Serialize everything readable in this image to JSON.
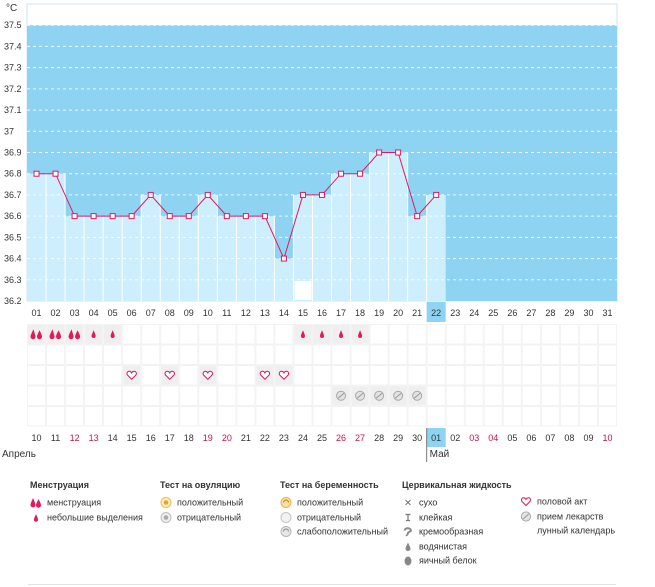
{
  "chart_data": {
    "type": "line",
    "title": "",
    "ylabel": "°C",
    "ylim": [
      36.2,
      37.6
    ],
    "yticks": [
      "37.5",
      "37.4",
      "37.3",
      "37.2",
      "37.1",
      "37",
      "36.9",
      "36.8",
      "36.7",
      "36.6",
      "36.5",
      "36.4",
      "36.3",
      "36.2"
    ],
    "days": [
      "01",
      "02",
      "03",
      "04",
      "05",
      "06",
      "07",
      "08",
      "09",
      "10",
      "11",
      "12",
      "13",
      "14",
      "15",
      "16",
      "17",
      "18",
      "19",
      "20",
      "21",
      "22",
      "23",
      "24",
      "25",
      "26",
      "27",
      "28",
      "29",
      "30",
      "31"
    ],
    "current_day": "22",
    "temperatures": [
      36.8,
      36.8,
      36.6,
      36.6,
      36.6,
      36.6,
      36.7,
      36.6,
      36.6,
      36.7,
      36.6,
      36.6,
      36.6,
      36.4,
      36.7,
      36.7,
      36.8,
      36.8,
      36.9,
      36.9,
      36.6,
      36.7
    ],
    "dates_bottom": [
      {
        "label": "10",
        "weekend": false
      },
      {
        "label": "11",
        "weekend": false
      },
      {
        "label": "12",
        "weekend": true
      },
      {
        "label": "13",
        "weekend": true
      },
      {
        "label": "14",
        "weekend": false
      },
      {
        "label": "15",
        "weekend": false
      },
      {
        "label": "16",
        "weekend": false
      },
      {
        "label": "17",
        "weekend": false
      },
      {
        "label": "18",
        "weekend": false
      },
      {
        "label": "19",
        "weekend": true
      },
      {
        "label": "20",
        "weekend": true
      },
      {
        "label": "21",
        "weekend": false
      },
      {
        "label": "22",
        "weekend": false
      },
      {
        "label": "23",
        "weekend": false
      },
      {
        "label": "24",
        "weekend": false
      },
      {
        "label": "25",
        "weekend": false
      },
      {
        "label": "26",
        "weekend": true
      },
      {
        "label": "27",
        "weekend": true
      },
      {
        "label": "28",
        "weekend": false
      },
      {
        "label": "29",
        "weekend": false
      },
      {
        "label": "30",
        "weekend": false
      },
      {
        "label": "01",
        "weekend": false
      },
      {
        "label": "02",
        "weekend": false
      },
      {
        "label": "03",
        "weekend": true
      },
      {
        "label": "04",
        "weekend": true
      },
      {
        "label": "05",
        "weekend": false
      },
      {
        "label": "06",
        "weekend": false
      },
      {
        "label": "07",
        "weekend": false
      },
      {
        "label": "08",
        "weekend": false
      },
      {
        "label": "09",
        "weekend": false
      },
      {
        "label": "10",
        "weekend": true
      }
    ],
    "month_start": "Апрель",
    "month_next": "Май",
    "month_next_day_index": 21,
    "markers": {
      "moon_days": [
        15
      ],
      "menstruation_days": [
        1,
        2,
        3
      ],
      "light_bleeding_days": [
        4,
        5,
        15,
        16,
        17,
        18
      ],
      "intercourse_days": [
        6,
        8,
        10,
        13,
        14
      ],
      "medication_days": [
        17,
        18,
        19,
        20,
        21
      ]
    }
  },
  "legend": {
    "menstruation": {
      "title": "Менструация",
      "items": [
        "менструация",
        "небольшие выделения"
      ]
    },
    "ovulation_test": {
      "title": "Тест на овуляцию",
      "items": [
        "положительный",
        "отрицательный"
      ]
    },
    "pregnancy_test": {
      "title": "Тест на беременность",
      "items": [
        "положительный",
        "отрицательный",
        "слабоположительный"
      ]
    },
    "cervical_fluid": {
      "title": "Цервикальная жидкость",
      "items": [
        "сухо",
        "клейкая",
        "кремообразная",
        "водянистая",
        "яичный белок"
      ]
    },
    "other": {
      "items": [
        "половой акт",
        "прием лекарств",
        "лунный календарь"
      ]
    }
  },
  "colors": {
    "band": "#8fd3f3",
    "bar": "#cdeefc",
    "line": "#e3185e",
    "today": "#8fd3f3",
    "weekend": "#cc1144"
  }
}
